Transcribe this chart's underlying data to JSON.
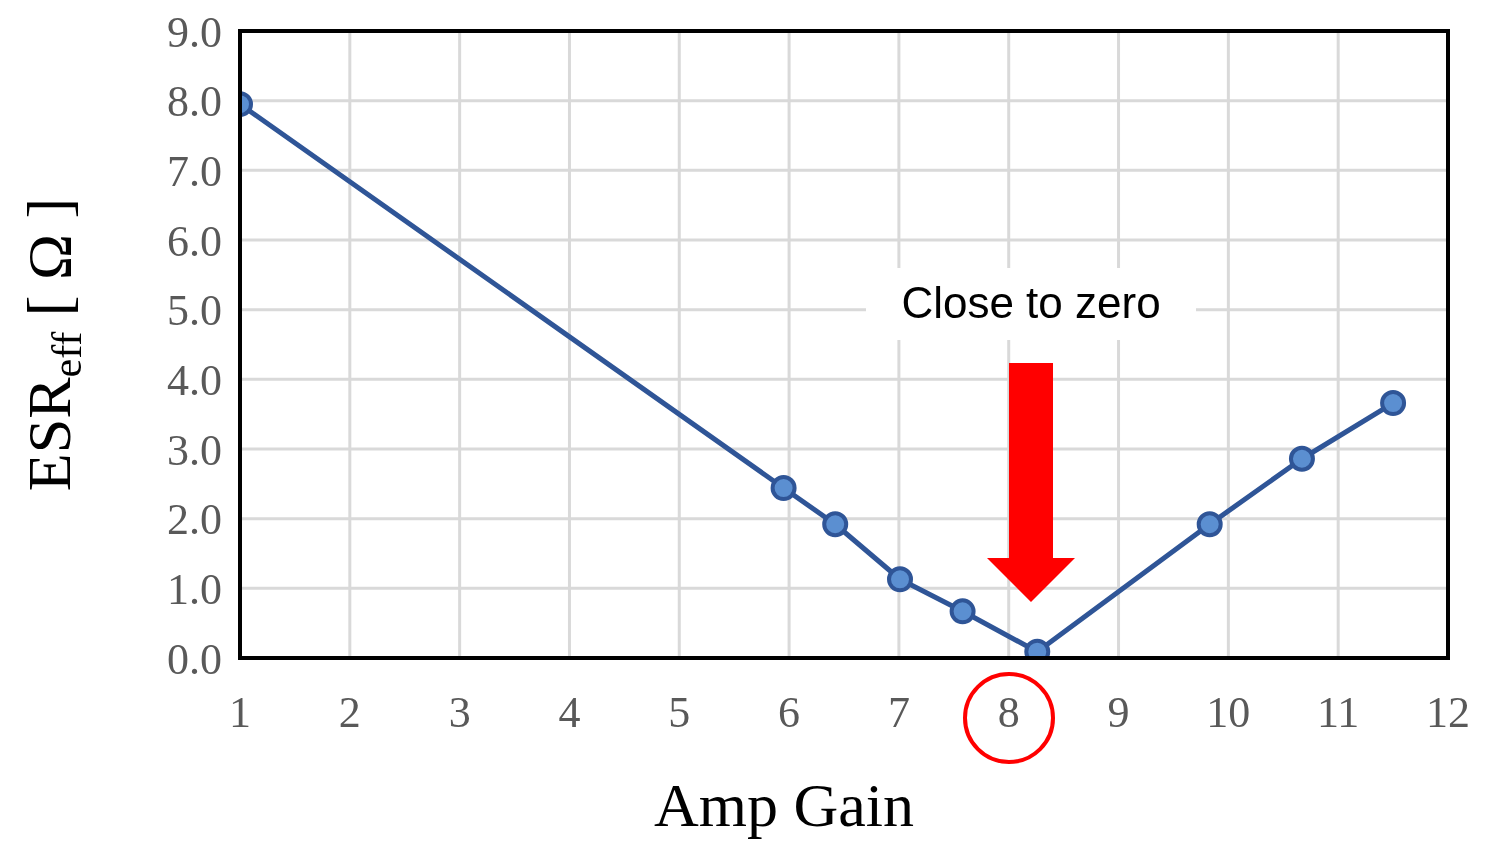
{
  "chart_data": {
    "type": "line",
    "xlabel": "Amp Gain",
    "ylabel": "ESR$_{eff}$ [ Ω ]",
    "x": [
      1,
      5.95,
      6.42,
      7.01,
      7.58,
      8.26,
      9.83,
      10.67,
      11.5
    ],
    "series": [
      {
        "color": "#2f5597",
        "values": [
          7.95,
          2.44,
          1.92,
          1.13,
          0.67,
          0.09,
          1.92,
          2.86,
          3.66
        ]
      }
    ],
    "xlim": [
      1,
      12
    ],
    "xticks": [
      1,
      2,
      3,
      4,
      5,
      6,
      7,
      8,
      9,
      10,
      11,
      12
    ],
    "ylim": [
      0,
      9
    ],
    "yticks": [
      {
        "value": 0,
        "label": "0.0"
      },
      {
        "value": 1,
        "label": "1.0"
      },
      {
        "value": 2,
        "label": "2.0"
      },
      {
        "value": 3,
        "label": "3.0"
      },
      {
        "value": 4,
        "label": "4.0"
      },
      {
        "value": 5,
        "label": "5.0"
      },
      {
        "value": 6,
        "label": "6.0"
      },
      {
        "value": 7,
        "label": "7.0"
      },
      {
        "value": 8,
        "label": "8.0"
      },
      {
        "value": 9,
        "label": "9.0"
      }
    ],
    "grid": true,
    "marker": "circle",
    "line_style": "solid",
    "annotations": [
      "Close to zero"
    ]
  }
}
